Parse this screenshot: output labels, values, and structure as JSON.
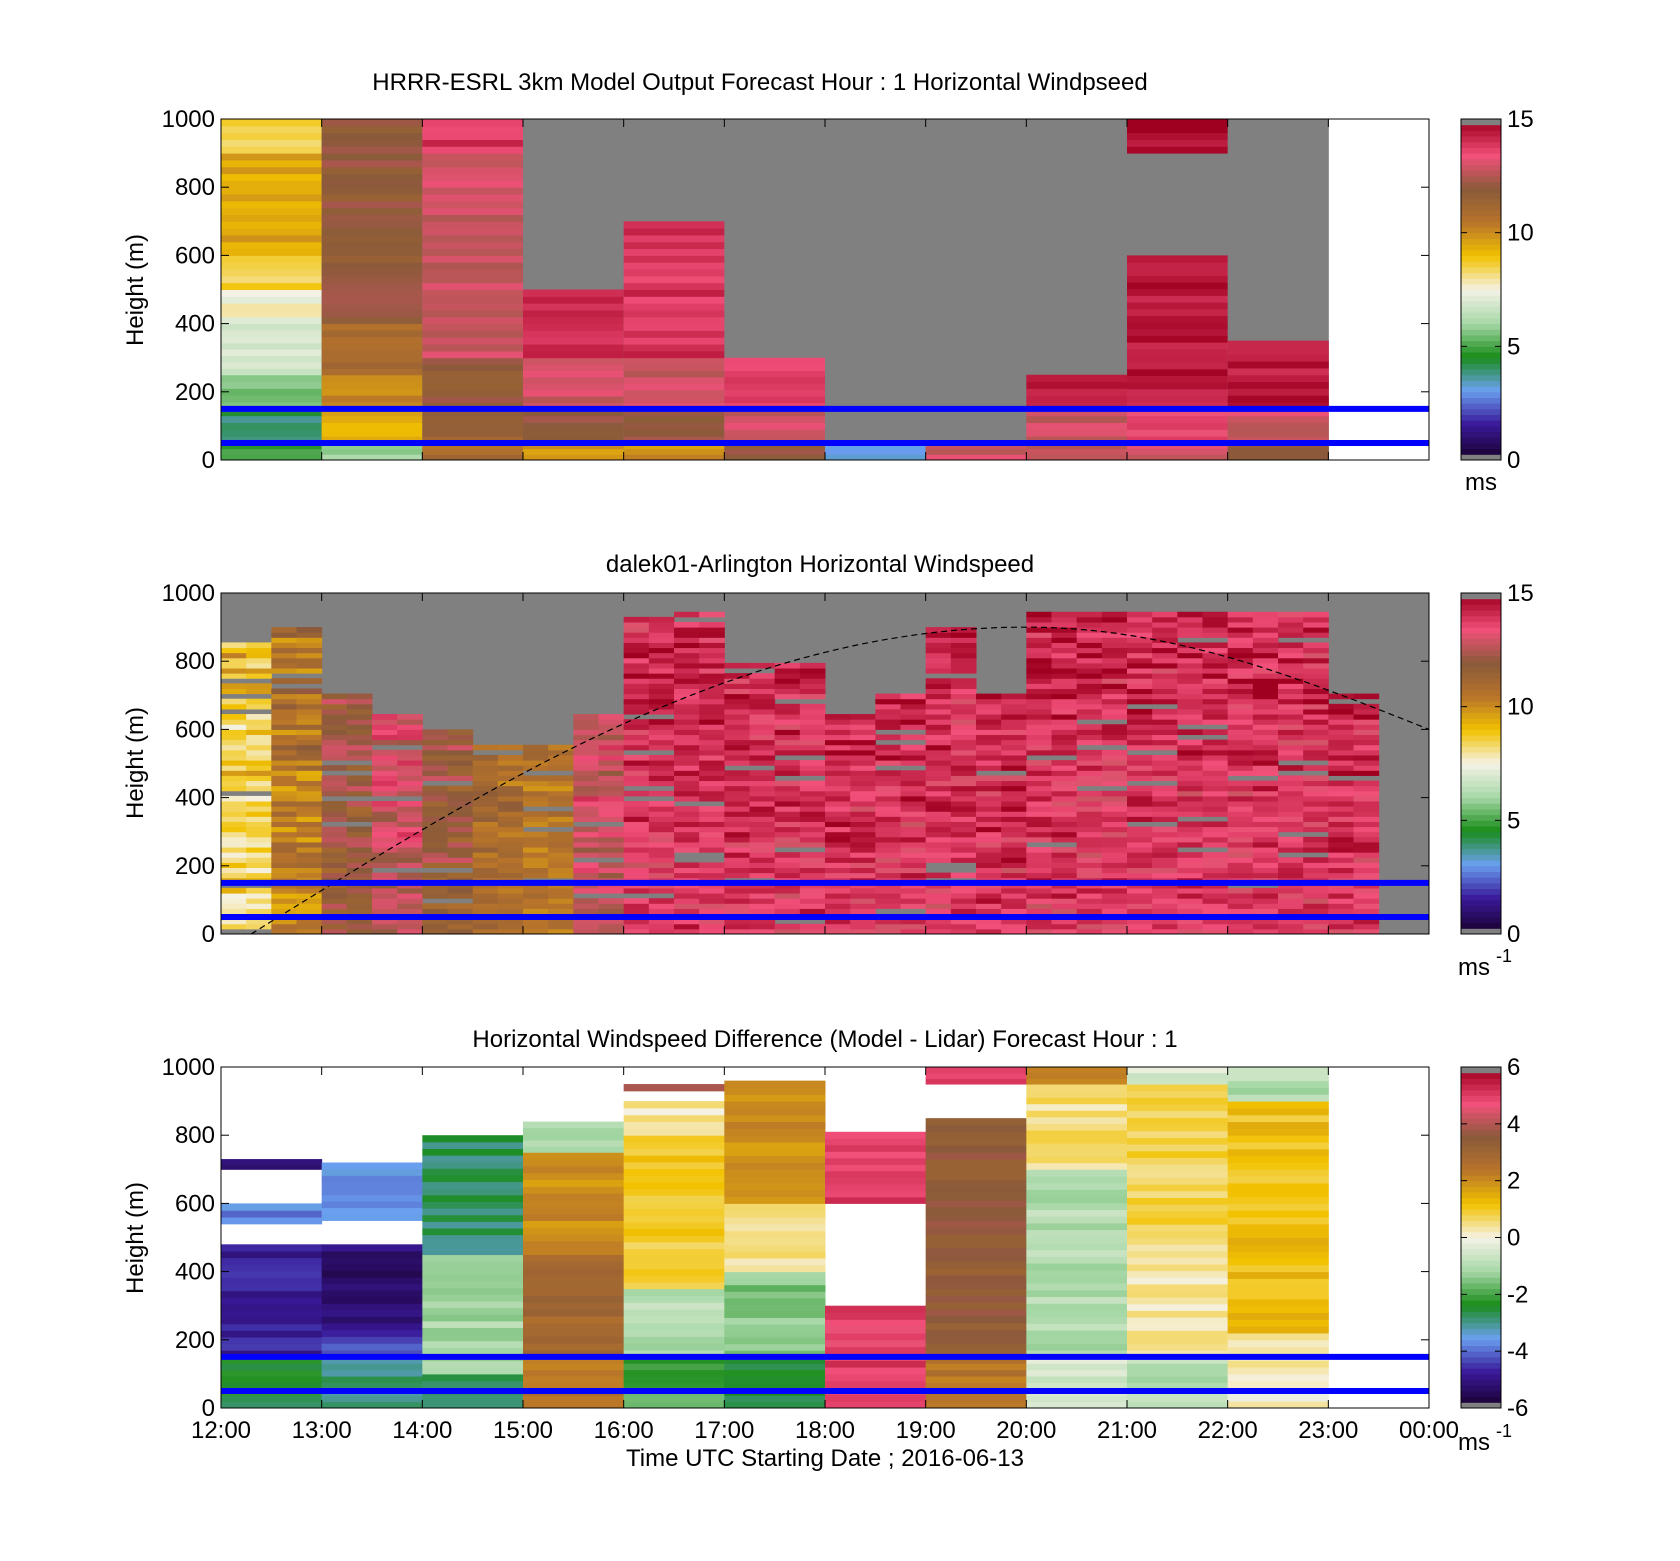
{
  "figure": {
    "xlabel": "Time UTC  Starting Date ; 2016-06-13",
    "time_ticks": [
      "12:00",
      "13:00",
      "14:00",
      "15:00",
      "16:00",
      "17:00",
      "18:00",
      "19:00",
      "20:00",
      "21:00",
      "22:00",
      "23:00",
      "00:00"
    ]
  },
  "colors": {
    "background": "#ffffff",
    "no_data_gray": "#808080",
    "reference_line_blue": "#0000ff",
    "colormap_stops": [
      "#1a0030",
      "#3a1a9a",
      "#6aa0f0",
      "#1a8c1a",
      "#a8d8a8",
      "#f5f2e6",
      "#f2c200",
      "#b8742a",
      "#8a5a3a",
      "#f2507a",
      "#a00020",
      "#808080"
    ]
  },
  "chart_data": [
    {
      "type": "heatmap",
      "title": "HRRR-ESRL 3km Model Output   Forecast Hour : 1 Horizontal Windpseed",
      "ylabel": "Height (m)",
      "ylim": [
        0,
        1000
      ],
      "yticks": [
        "0",
        "200",
        "400",
        "600",
        "800",
        "1000"
      ],
      "x_hours": [
        12,
        13,
        14,
        15,
        16,
        17,
        18,
        19,
        20,
        21,
        22,
        23
      ],
      "colorbar": {
        "min": 0,
        "max": 15,
        "ticks": [
          "0",
          "5",
          "10",
          "15"
        ],
        "unit": "ms"
      },
      "reference_lines_m": [
        50,
        150
      ],
      "column_profiles_ms": [
        {
          "hour": "12:00",
          "cells": [
            [
              0,
              50,
              5
            ],
            [
              50,
              150,
              4
            ],
            [
              150,
              250,
              5.5
            ],
            [
              250,
              400,
              7
            ],
            [
              400,
              500,
              7.5
            ],
            [
              500,
              600,
              8.5
            ],
            [
              600,
              900,
              9.5
            ],
            [
              900,
              1000,
              8.5
            ]
          ]
        },
        {
          "hour": "13:00",
          "cells": [
            [
              0,
              50,
              6
            ],
            [
              50,
              150,
              9.5
            ],
            [
              150,
              250,
              10
            ],
            [
              250,
              400,
              11
            ],
            [
              400,
              1000,
              12
            ]
          ]
        },
        {
          "hour": "14:00",
          "cells": [
            [
              0,
              50,
              11
            ],
            [
              50,
              150,
              11.5
            ],
            [
              150,
              300,
              12
            ],
            [
              300,
              900,
              13
            ],
            [
              900,
              1000,
              14
            ]
          ]
        },
        {
          "hour": "15:00",
          "cells": [
            [
              0,
              50,
              10
            ],
            [
              50,
              150,
              12
            ],
            [
              150,
              300,
              13
            ],
            [
              300,
              500,
              14
            ]
          ]
        },
        {
          "hour": "16:00",
          "cells": [
            [
              0,
              50,
              10
            ],
            [
              50,
              150,
              12
            ],
            [
              150,
              300,
              13
            ],
            [
              300,
              700,
              14
            ]
          ]
        },
        {
          "hour": "17:00",
          "cells": [
            [
              0,
              50,
              12
            ],
            [
              50,
              150,
              13
            ],
            [
              150,
              300,
              14
            ]
          ]
        },
        {
          "hour": "18:00",
          "cells": [
            [
              0,
              50,
              3
            ]
          ]
        },
        {
          "hour": "19:00",
          "cells": [
            [
              0,
              50,
              13
            ]
          ]
        },
        {
          "hour": "20:00",
          "cells": [
            [
              0,
              50,
              13
            ],
            [
              50,
              150,
              13
            ],
            [
              150,
              250,
              14.5
            ]
          ]
        },
        {
          "hour": "21:00",
          "cells": [
            [
              0,
              50,
              13
            ],
            [
              50,
              150,
              13.5
            ],
            [
              150,
              600,
              14.5
            ],
            [
              900,
              1000,
              14.8
            ]
          ]
        },
        {
          "hour": "22:00",
          "cells": [
            [
              0,
              50,
              12
            ],
            [
              50,
              150,
              13
            ],
            [
              150,
              350,
              14.5
            ]
          ]
        }
      ]
    },
    {
      "type": "heatmap",
      "title": "dalek01-Arlington  Horizontal Windspeed",
      "ylabel": "Height (m)",
      "ylim": [
        0,
        1000
      ],
      "yticks": [
        "0",
        "200",
        "400",
        "600",
        "800",
        "1000"
      ],
      "x_hours": [
        12,
        24
      ],
      "colorbar": {
        "min": 0,
        "max": 15,
        "ticks": [
          "0",
          "5",
          "10",
          "15"
        ],
        "unit": "ms",
        "unit_exponent": "-1"
      },
      "reference_lines_m": [
        50,
        150
      ],
      "overlay_curve": {
        "style": "dashed",
        "peak_height_m": 900,
        "peak_time_hour": 20,
        "start_time_hour": 12.3,
        "start_height_m": 0,
        "end_time_hour": 24,
        "end_height_m": 600
      },
      "lidar_profiles_ms": [
        {
          "time_hour": 12.0,
          "top_m": 850,
          "low": 7,
          "high": 10
        },
        {
          "time_hour": 12.5,
          "top_m": 900,
          "low": 9,
          "high": 12
        },
        {
          "time_hour": 13.0,
          "top_m": 700,
          "low": 11,
          "high": 13
        },
        {
          "time_hour": 13.5,
          "top_m": 650,
          "low": 12,
          "high": 14
        },
        {
          "time_hour": 14.0,
          "top_m": 600,
          "low": 11,
          "high": 13
        },
        {
          "time_hour": 14.5,
          "top_m": 550,
          "low": 10,
          "high": 12
        },
        {
          "time_hour": 15.0,
          "top_m": 550,
          "low": 10,
          "high": 11
        },
        {
          "time_hour": 15.5,
          "top_m": 650,
          "low": 12,
          "high": 14
        },
        {
          "time_hour": 16.0,
          "top_m": 950,
          "low": 13,
          "high": 15
        },
        {
          "time_hour": 16.5,
          "top_m": 950,
          "low": 13,
          "high": 15
        },
        {
          "time_hour": 17.0,
          "top_m": 800,
          "low": 13,
          "high": 15
        },
        {
          "time_hour": 17.5,
          "top_m": 800,
          "low": 13,
          "high": 15
        },
        {
          "time_hour": 18.0,
          "top_m": 650,
          "low": 13,
          "high": 15
        },
        {
          "time_hour": 18.5,
          "top_m": 700,
          "low": 13,
          "high": 15
        },
        {
          "time_hour": 19.0,
          "top_m": 900,
          "low": 13,
          "high": 15
        },
        {
          "time_hour": 19.5,
          "top_m": 700,
          "low": 13,
          "high": 15
        },
        {
          "time_hour": 20.0,
          "top_m": 950,
          "low": 13,
          "high": 15
        },
        {
          "time_hour": 20.5,
          "top_m": 950,
          "low": 13,
          "high": 15
        },
        {
          "time_hour": 21.0,
          "top_m": 950,
          "low": 13,
          "high": 15
        },
        {
          "time_hour": 21.5,
          "top_m": 950,
          "low": 13,
          "high": 15
        },
        {
          "time_hour": 22.0,
          "top_m": 950,
          "low": 13,
          "high": 15
        },
        {
          "time_hour": 22.5,
          "top_m": 950,
          "low": 13,
          "high": 15
        },
        {
          "time_hour": 23.0,
          "top_m": 700,
          "low": 13,
          "high": 15
        }
      ]
    },
    {
      "type": "heatmap",
      "title": "Horizontal Windspeed Difference (Model - Lidar) Forecast Hour : 1",
      "ylabel": "Height (m)",
      "ylim": [
        0,
        1000
      ],
      "yticks": [
        "0",
        "200",
        "400",
        "600",
        "800",
        "1000"
      ],
      "x_hours": [
        12,
        13,
        14,
        15,
        16,
        17,
        18,
        19,
        20,
        21,
        22,
        23
      ],
      "colorbar": {
        "min": -6,
        "max": 6,
        "ticks": [
          "-6",
          "-4",
          "-2",
          "0",
          "2",
          "4",
          "6"
        ],
        "unit": "ms",
        "unit_exponent": "-1"
      },
      "reference_lines_m": [
        50,
        150
      ],
      "column_profiles_ms": [
        {
          "hour": "12:00",
          "cells": [
            [
              0,
              150,
              -2.5
            ],
            [
              150,
              480,
              -4.8
            ],
            [
              540,
              600,
              -3.8
            ],
            [
              700,
              730,
              -5
            ]
          ]
        },
        {
          "hour": "13:00",
          "cells": [
            [
              0,
              150,
              -3
            ],
            [
              150,
              230,
              -4.5
            ],
            [
              230,
              480,
              -5.3
            ],
            [
              550,
              720,
              -3.6
            ]
          ]
        },
        {
          "hour": "14:00",
          "cells": [
            [
              0,
              100,
              -2.8
            ],
            [
              100,
              450,
              -1.2
            ],
            [
              450,
              800,
              -2.8
            ]
          ]
        },
        {
          "hour": "15:00",
          "cells": [
            [
              0,
              150,
              2.5
            ],
            [
              150,
              450,
              3
            ],
            [
              450,
              750,
              2
            ],
            [
              750,
              840,
              -1
            ]
          ]
        },
        {
          "hour": "16:00",
          "cells": [
            [
              0,
              150,
              -2
            ],
            [
              150,
              350,
              -1
            ],
            [
              350,
              800,
              1
            ],
            [
              800,
              900,
              0.3
            ],
            [
              930,
              950,
              4
            ]
          ]
        },
        {
          "hour": "17:00",
          "cells": [
            [
              0,
              150,
              -2.5
            ],
            [
              150,
              400,
              -1.5
            ],
            [
              400,
              600,
              0.5
            ],
            [
              600,
              960,
              2
            ]
          ]
        },
        {
          "hour": "18:00",
          "cells": [
            [
              0,
              300,
              5
            ],
            [
              600,
              810,
              5
            ]
          ]
        },
        {
          "hour": "19:00",
          "cells": [
            [
              0,
              150,
              2.5
            ],
            [
              150,
              850,
              3.5
            ],
            [
              950,
              1000,
              5
            ]
          ]
        },
        {
          "hour": "20:00",
          "cells": [
            [
              0,
              150,
              -0.5
            ],
            [
              150,
              700,
              -1
            ],
            [
              700,
              950,
              0.5
            ],
            [
              950,
              1000,
              2
            ]
          ]
        },
        {
          "hour": "21:00",
          "cells": [
            [
              0,
              150,
              -1
            ],
            [
              150,
              500,
              0.3
            ],
            [
              500,
              950,
              0.8
            ],
            [
              950,
              1000,
              -0.5
            ]
          ]
        },
        {
          "hour": "22:00",
          "cells": [
            [
              0,
              220,
              0.2
            ],
            [
              220,
              900,
              1.2
            ],
            [
              900,
              1000,
              -1
            ]
          ]
        }
      ]
    }
  ]
}
